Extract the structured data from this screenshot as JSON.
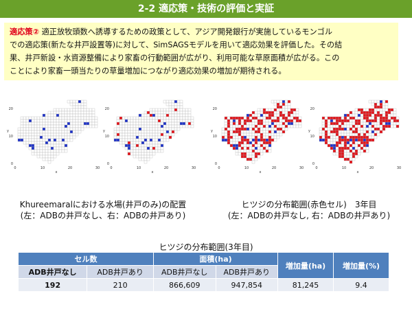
{
  "title": "2-2 適応策・技術の評価と実証",
  "note": {
    "tag": "適応策②",
    "lines": [
      "適正放牧頭数へ誘導するための政策として、アジア開発銀行が実施しているモンゴル",
      "での適応策(新たな井戸設置等)に対して、SimSAGSモデルを用いて適応効果を評価した。その結",
      "果、井戸新設・水資源整備により家畜の行動範囲が広がり、利用可能な草原面積が広がる。この",
      "ことにより家畜一頭当たりの草量増加につながり適応効果の増加が期待される。"
    ]
  },
  "figures": {
    "left_caption": [
      "Khureemaralにおける水場(井戸のみ)の配置",
      "(左：ADBの井戸なし、右：ADBの井戸あり)"
    ],
    "right_caption": [
      "ヒツジの分布範囲(赤色セル)　3年目",
      "(左：ADBの井戸なし, 右：ADBの井戸あり)"
    ],
    "axis_ticks_x": [
      "0",
      "10",
      "20",
      "30"
    ],
    "axis_ticks_y": [
      "0",
      "10",
      "20"
    ],
    "axis_label_y": "y",
    "axis_label_x": "x",
    "colors": {
      "water": "#1f33c8",
      "sheep": "#e2141b",
      "cell": "#ffffff",
      "gridline": "#aaaaaa"
    }
  },
  "table": {
    "title": "ヒツジの分布範囲(3年目)",
    "header_cells": "セル数",
    "header_area": "面積(ha)",
    "header_increase": "増加量(ha)",
    "header_increase_pct": "増加量(%)",
    "sub": [
      "ADB井戸なし",
      "ADB井戸あり",
      "ADB井戸なし",
      "ADB井戸あり"
    ],
    "row": [
      "192",
      "210",
      "866,609",
      "947,854",
      "81,245",
      "9.4"
    ]
  }
}
